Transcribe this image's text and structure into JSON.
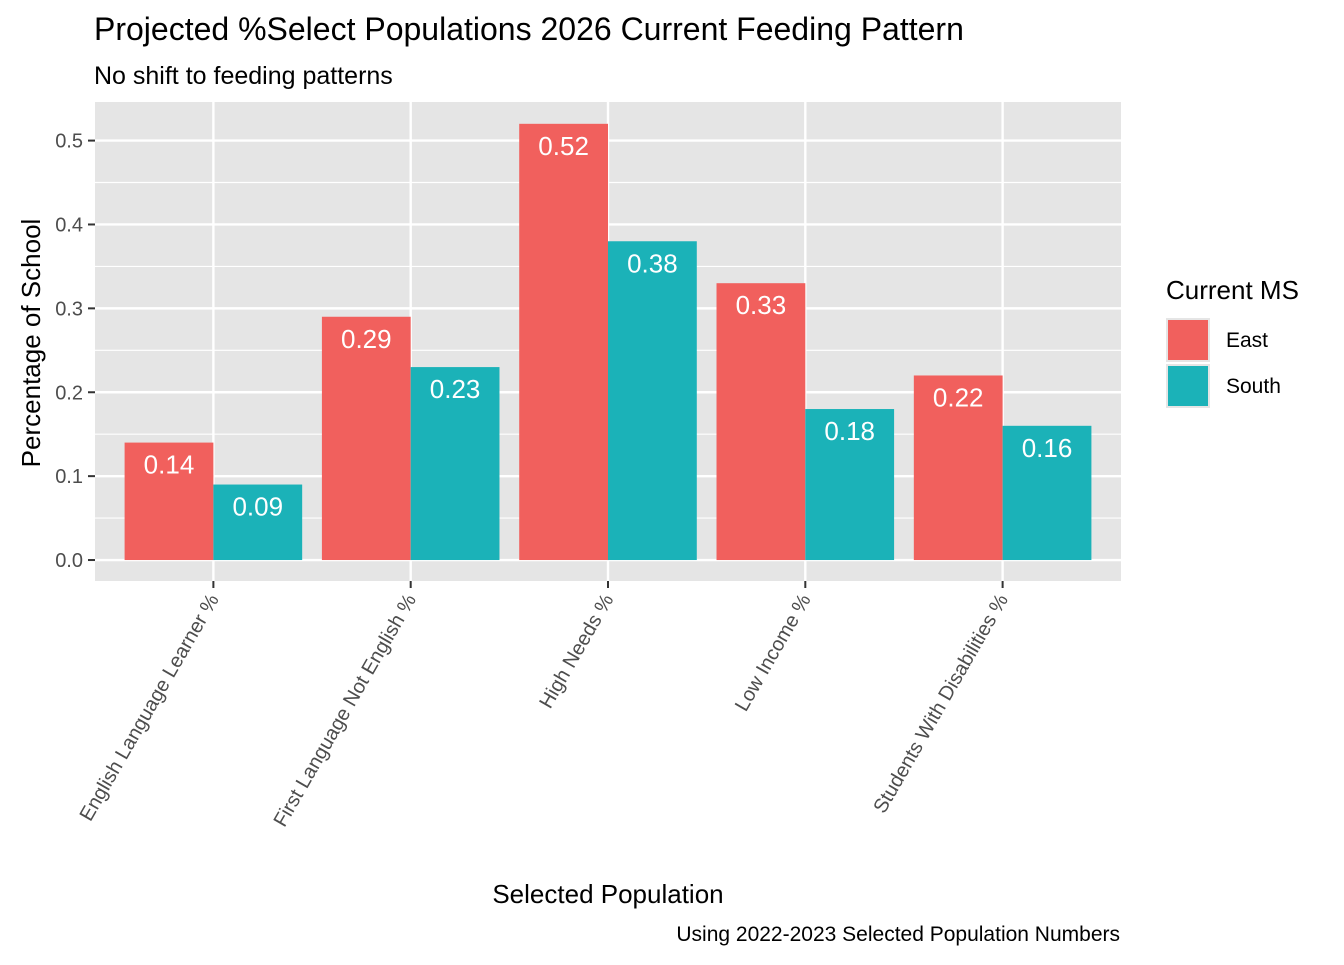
{
  "chart_data": {
    "type": "bar",
    "title": "Projected %Select Populations 2026 Current Feeding Pattern",
    "subtitle": "No shift to feeding patterns",
    "xlabel": "Selected Population",
    "ylabel": "Percentage of School",
    "caption": "Using 2022-2023 Selected Population Numbers",
    "categories": [
      "English Language Learner %",
      "First Language Not English %",
      "High Needs %",
      "Low Income %",
      "Students With Disabilities %"
    ],
    "series": [
      {
        "name": "East",
        "color": "#F1605D",
        "values": [
          0.14,
          0.29,
          0.52,
          0.33,
          0.22
        ],
        "labels": [
          "0.14",
          "0.29",
          "0.52",
          "0.33",
          "0.22"
        ]
      },
      {
        "name": "South",
        "color": "#1BB2B8",
        "values": [
          0.09,
          0.23,
          0.38,
          0.18,
          0.16
        ],
        "labels": [
          "0.09",
          "0.23",
          "0.38",
          "0.18",
          "0.16"
        ]
      }
    ],
    "ylim": [
      -0.025,
      0.546
    ],
    "yticks": [
      0.0,
      0.1,
      0.2,
      0.3,
      0.4,
      0.5
    ],
    "ytick_labels": [
      "0.0",
      "0.1",
      "0.2",
      "0.3",
      "0.4",
      "0.5"
    ],
    "grid": true,
    "legend": {
      "title": "Current MS",
      "position": "right"
    },
    "panel_background": "#E5E5E5",
    "grid_color": "#FFFFFF"
  }
}
